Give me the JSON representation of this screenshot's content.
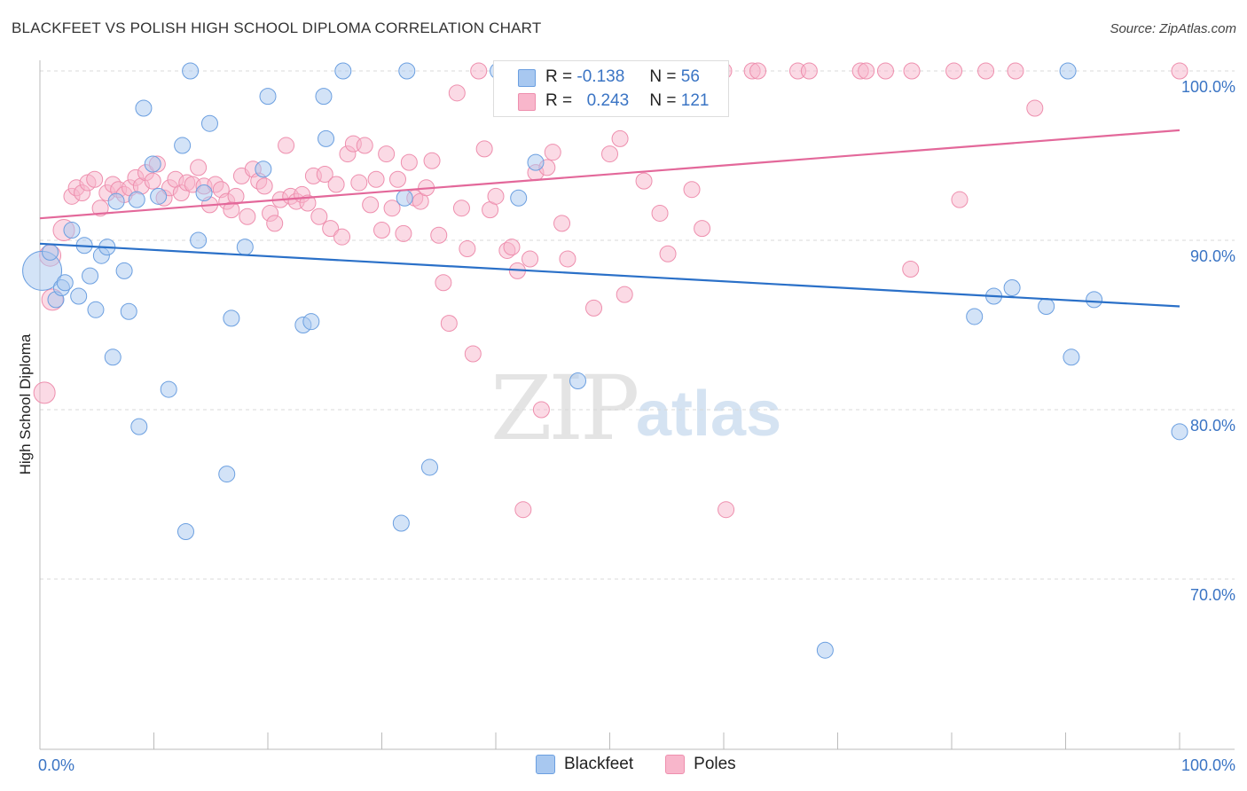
{
  "header": {
    "title": "BLACKFEET VS POLISH HIGH SCHOOL DIPLOMA CORRELATION CHART",
    "source": "Source: ZipAtlas.com"
  },
  "watermark": {
    "zip": "ZIP",
    "atlas": "atlas"
  },
  "legend_top": {
    "rows": [
      {
        "r_label": "R =",
        "r_value": "-0.138",
        "n_label": "N =",
        "n_value": "56"
      },
      {
        "r_label": "R =",
        "r_value": "0.243",
        "n_label": "N =",
        "n_value": "121"
      }
    ]
  },
  "legend_bottom": {
    "items": [
      "Blackfeet",
      "Poles"
    ]
  },
  "colors": {
    "blackfeet_fill": "#a8c8f0",
    "blackfeet_stroke": "#6b9fe0",
    "blackfeet_line": "#2a70c8",
    "poles_fill": "#f8b6cb",
    "poles_stroke": "#ee8fae",
    "poles_line": "#e3689a",
    "tick_text": "#3a74c4",
    "grid": "#d8d8d8"
  },
  "chart_data": {
    "type": "scatter",
    "title": "BLACKFEET VS POLISH HIGH SCHOOL DIPLOMA CORRELATION CHART",
    "xlabel": "",
    "ylabel": "High School Diploma",
    "xlim": [
      0,
      100
    ],
    "ylim": [
      60,
      101.5
    ],
    "x_tick_labels": [
      "0.0%",
      "100.0%"
    ],
    "y_ticks": [
      70,
      80,
      90,
      100
    ],
    "y_tick_labels": [
      "70.0%",
      "80.0%",
      "90.0%",
      "100.0%"
    ],
    "grid": true,
    "legend": "top-center",
    "series": [
      {
        "name": "Blackfeet",
        "r": -0.138,
        "n": 56,
        "trend": {
          "x": [
            0,
            100
          ],
          "y": [
            89.8,
            86.1
          ]
        },
        "points": [
          [
            0.2,
            88.2,
            22
          ],
          [
            0.9,
            89.3,
            9
          ],
          [
            1.4,
            86.5,
            9
          ],
          [
            1.9,
            87.2,
            9
          ],
          [
            2.2,
            87.5,
            9
          ],
          [
            2.8,
            90.6,
            9
          ],
          [
            3.4,
            86.7,
            9
          ],
          [
            3.9,
            89.7,
            9
          ],
          [
            4.4,
            87.9,
            9
          ],
          [
            4.9,
            85.9,
            9
          ],
          [
            5.4,
            89.1,
            9
          ],
          [
            5.9,
            89.6,
            9
          ],
          [
            6.4,
            83.1,
            9
          ],
          [
            6.7,
            92.3,
            9
          ],
          [
            7.4,
            88.2,
            9
          ],
          [
            7.8,
            85.8,
            9
          ],
          [
            8.5,
            92.4,
            9
          ],
          [
            8.7,
            79.0,
            9
          ],
          [
            9.1,
            97.8,
            9
          ],
          [
            9.9,
            94.5,
            9
          ],
          [
            10.4,
            92.6,
            9
          ],
          [
            11.3,
            81.2,
            9
          ],
          [
            12.5,
            95.6,
            9
          ],
          [
            12.8,
            72.8,
            9
          ],
          [
            13.2,
            100.0,
            9
          ],
          [
            13.9,
            90.0,
            9
          ],
          [
            14.4,
            92.8,
            9
          ],
          [
            14.9,
            96.9,
            9
          ],
          [
            16.4,
            76.2,
            9
          ],
          [
            16.8,
            85.4,
            9
          ],
          [
            18.0,
            89.6,
            9
          ],
          [
            20.0,
            98.5,
            9
          ],
          [
            19.6,
            94.2,
            9
          ],
          [
            23.1,
            85.0,
            9
          ],
          [
            23.8,
            85.2,
            9
          ],
          [
            24.9,
            98.5,
            9
          ],
          [
            25.1,
            96.0,
            9
          ],
          [
            26.6,
            100.0,
            9
          ],
          [
            31.7,
            73.3,
            9
          ],
          [
            32.2,
            100.0,
            9
          ],
          [
            32.0,
            92.5,
            9
          ],
          [
            34.2,
            76.6,
            9
          ],
          [
            40.2,
            100.0,
            9
          ],
          [
            42.0,
            92.5,
            9
          ],
          [
            43.5,
            94.6,
            9
          ],
          [
            47.5,
            100.0,
            9
          ],
          [
            47.2,
            81.7,
            9
          ],
          [
            68.9,
            65.8,
            9
          ],
          [
            82.0,
            85.5,
            9
          ],
          [
            83.7,
            86.7,
            9
          ],
          [
            85.3,
            87.2,
            9
          ],
          [
            88.3,
            86.1,
            9
          ],
          [
            90.2,
            100.0,
            9
          ],
          [
            90.5,
            83.1,
            9
          ],
          [
            92.5,
            86.5,
            9
          ],
          [
            100.0,
            78.7,
            9
          ]
        ]
      },
      {
        "name": "Poles",
        "r": 0.243,
        "n": 121,
        "trend": {
          "x": [
            0,
            100
          ],
          "y": [
            91.3,
            96.5
          ]
        },
        "points": [
          [
            0.4,
            81.0,
            12
          ],
          [
            0.9,
            89.1,
            12
          ],
          [
            1.1,
            86.5,
            12
          ],
          [
            2.1,
            90.6,
            12
          ],
          [
            2.8,
            92.6,
            9
          ],
          [
            3.2,
            93.1,
            9
          ],
          [
            3.7,
            92.8,
            9
          ],
          [
            4.2,
            93.4,
            9
          ],
          [
            4.8,
            93.6,
            9
          ],
          [
            5.3,
            91.9,
            9
          ],
          [
            5.9,
            92.8,
            9
          ],
          [
            6.4,
            93.3,
            9
          ],
          [
            6.9,
            93.0,
            9
          ],
          [
            7.4,
            92.7,
            9
          ],
          [
            7.9,
            93.1,
            9
          ],
          [
            8.4,
            93.7,
            9
          ],
          [
            8.9,
            93.2,
            9
          ],
          [
            9.3,
            94.0,
            9
          ],
          [
            9.9,
            93.5,
            9
          ],
          [
            10.3,
            94.5,
            9
          ],
          [
            10.9,
            92.5,
            9
          ],
          [
            11.4,
            93.1,
            9
          ],
          [
            11.9,
            93.6,
            9
          ],
          [
            12.4,
            92.8,
            9
          ],
          [
            12.9,
            93.4,
            9
          ],
          [
            13.4,
            93.3,
            9
          ],
          [
            13.9,
            94.3,
            9
          ],
          [
            14.4,
            93.2,
            9
          ],
          [
            14.9,
            92.1,
            9
          ],
          [
            15.4,
            93.3,
            9
          ],
          [
            15.9,
            93.0,
            9
          ],
          [
            16.4,
            92.3,
            9
          ],
          [
            16.8,
            91.8,
            9
          ],
          [
            17.2,
            92.6,
            9
          ],
          [
            17.7,
            93.8,
            9
          ],
          [
            18.2,
            91.4,
            9
          ],
          [
            18.7,
            94.2,
            9
          ],
          [
            19.2,
            93.5,
            9
          ],
          [
            19.7,
            93.2,
            9
          ],
          [
            20.2,
            91.6,
            9
          ],
          [
            20.6,
            91.0,
            9
          ],
          [
            21.1,
            92.4,
            9
          ],
          [
            21.6,
            95.6,
            9
          ],
          [
            22.0,
            92.6,
            9
          ],
          [
            22.5,
            92.3,
            9
          ],
          [
            23.0,
            92.7,
            9
          ],
          [
            23.5,
            92.2,
            9
          ],
          [
            24.0,
            93.8,
            9
          ],
          [
            24.5,
            91.4,
            9
          ],
          [
            25.0,
            93.9,
            9
          ],
          [
            25.5,
            90.7,
            9
          ],
          [
            26.0,
            93.3,
            9
          ],
          [
            26.5,
            90.2,
            9
          ],
          [
            27.0,
            95.1,
            9
          ],
          [
            27.5,
            95.7,
            9
          ],
          [
            28.0,
            93.4,
            9
          ],
          [
            28.5,
            95.6,
            9
          ],
          [
            29.0,
            92.1,
            9
          ],
          [
            29.5,
            93.6,
            9
          ],
          [
            30.0,
            90.6,
            9
          ],
          [
            30.4,
            95.1,
            9
          ],
          [
            30.9,
            91.9,
            9
          ],
          [
            31.4,
            93.6,
            9
          ],
          [
            31.9,
            90.4,
            9
          ],
          [
            32.4,
            94.6,
            9
          ],
          [
            32.9,
            92.5,
            9
          ],
          [
            33.4,
            92.3,
            9
          ],
          [
            33.9,
            93.1,
            9
          ],
          [
            34.4,
            94.7,
            9
          ],
          [
            35.0,
            90.3,
            9
          ],
          [
            35.4,
            87.5,
            9
          ],
          [
            35.9,
            85.1,
            9
          ],
          [
            36.6,
            98.7,
            9
          ],
          [
            37.0,
            91.9,
            9
          ],
          [
            37.5,
            89.5,
            9
          ],
          [
            38.0,
            83.3,
            9
          ],
          [
            38.5,
            100.0,
            9
          ],
          [
            39.0,
            95.4,
            9
          ],
          [
            39.5,
            91.8,
            9
          ],
          [
            40.0,
            92.6,
            9
          ],
          [
            40.5,
            98.0,
            9
          ],
          [
            41.0,
            89.4,
            9
          ],
          [
            41.4,
            89.6,
            9
          ],
          [
            41.9,
            88.2,
            9
          ],
          [
            42.4,
            74.1,
            9
          ],
          [
            43.0,
            88.9,
            9
          ],
          [
            43.5,
            94.0,
            9
          ],
          [
            44.0,
            80.0,
            9
          ],
          [
            44.5,
            94.3,
            9
          ],
          [
            45.0,
            95.2,
            9
          ],
          [
            45.8,
            91.0,
            9
          ],
          [
            46.3,
            88.9,
            9
          ],
          [
            48.6,
            86.0,
            9
          ],
          [
            50.0,
            95.1,
            9
          ],
          [
            50.9,
            96.0,
            9
          ],
          [
            51.3,
            86.8,
            9
          ],
          [
            52.5,
            100.0,
            9
          ],
          [
            53.0,
            93.5,
            9
          ],
          [
            53.6,
            100.0,
            9
          ],
          [
            54.4,
            91.6,
            9
          ],
          [
            55.1,
            89.2,
            9
          ],
          [
            58.1,
            90.7,
            9
          ],
          [
            60.0,
            100.0,
            9
          ],
          [
            60.2,
            74.1,
            9
          ],
          [
            62.5,
            100.0,
            9
          ],
          [
            63.0,
            100.0,
            9
          ],
          [
            66.5,
            100.0,
            9
          ],
          [
            67.5,
            100.0,
            9
          ],
          [
            72.0,
            100.0,
            9
          ],
          [
            72.5,
            100.0,
            9
          ],
          [
            74.2,
            100.0,
            9
          ],
          [
            76.5,
            100.0,
            9
          ],
          [
            80.2,
            100.0,
            9
          ],
          [
            83.0,
            100.0,
            9
          ],
          [
            85.6,
            100.0,
            9
          ],
          [
            87.3,
            97.8,
            9
          ],
          [
            100.0,
            100.0,
            9
          ],
          [
            76.4,
            88.3,
            9
          ],
          [
            80.7,
            92.4,
            9
          ],
          [
            57.2,
            93.0,
            9
          ],
          [
            48.9,
            99.0,
            9
          ]
        ]
      }
    ]
  }
}
